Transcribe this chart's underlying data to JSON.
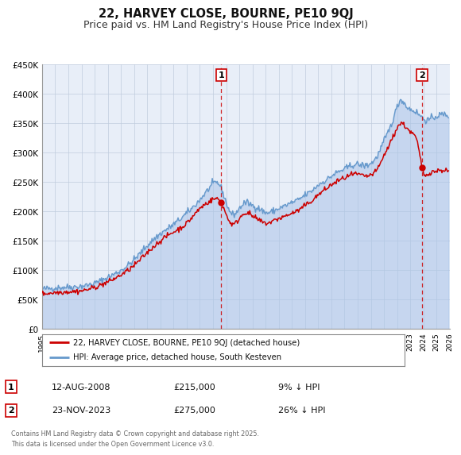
{
  "title": "22, HARVEY CLOSE, BOURNE, PE10 9QJ",
  "subtitle": "Price paid vs. HM Land Registry's House Price Index (HPI)",
  "ylim": [
    0,
    450000
  ],
  "xlim_start": 1995,
  "xlim_end": 2026,
  "yticks": [
    0,
    50000,
    100000,
    150000,
    200000,
    250000,
    300000,
    350000,
    400000,
    450000
  ],
  "ytick_labels": [
    "£0",
    "£50K",
    "£100K",
    "£150K",
    "£200K",
    "£250K",
    "£300K",
    "£350K",
    "£400K",
    "£450K"
  ],
  "sale1_x": 2008.617,
  "sale1_y": 215000,
  "sale1_label": "1",
  "sale1_date": "12-AUG-2008",
  "sale1_price": "£215,000",
  "sale1_hpi": "9% ↓ HPI",
  "sale2_x": 2023.899,
  "sale2_y": 275000,
  "sale2_label": "2",
  "sale2_date": "23-NOV-2023",
  "sale2_price": "£275,000",
  "sale2_hpi": "26% ↓ HPI",
  "house_color": "#cc0000",
  "hpi_color": "#6699cc",
  "hpi_fill_color": "#aac4e8",
  "background_color": "#e8eef8",
  "legend_label_house": "22, HARVEY CLOSE, BOURNE, PE10 9QJ (detached house)",
  "legend_label_hpi": "HPI: Average price, detached house, South Kesteven",
  "footer": "Contains HM Land Registry data © Crown copyright and database right 2025.\nThis data is licensed under the Open Government Licence v3.0.",
  "title_fontsize": 10.5,
  "subtitle_fontsize": 9
}
